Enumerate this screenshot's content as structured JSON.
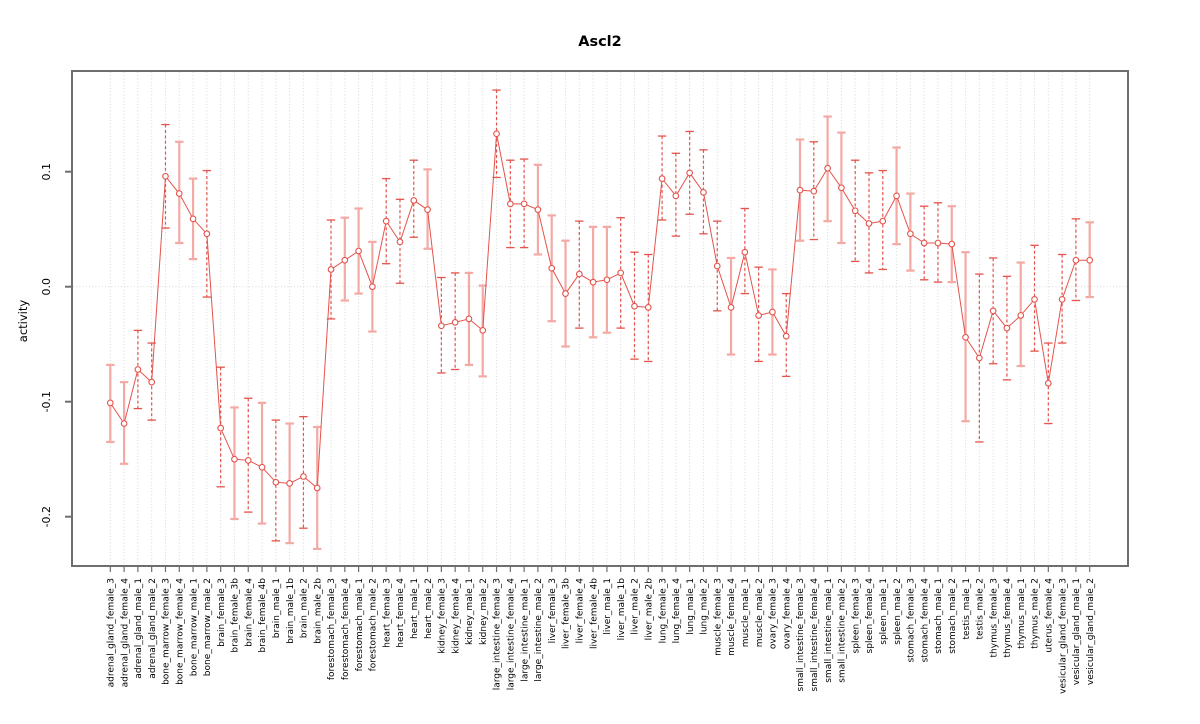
{
  "chart_data": {
    "type": "line",
    "title": "Ascl2",
    "xlabel": "",
    "ylabel": "activity",
    "ylim": [
      -0.243,
      0.188
    ],
    "y_ticks": [
      0.1,
      0.0,
      -0.1,
      -0.2
    ],
    "y_tick_labels": [
      "0.1",
      "0.0",
      "-0.1",
      "-0.2"
    ],
    "grid": "vertical dotted gridline at every category; dotted horizontal line at y=0",
    "legend_position": "none",
    "marker": "open-circle",
    "categories": [
      "adrenal_gland_female_3",
      "adrenal_gland_female_4",
      "adrenal_gland_male_1",
      "adrenal_gland_male_2",
      "bone_marrow_female_3",
      "bone_marrow_female_4",
      "bone_marrow_male_1",
      "bone_marrow_male_2",
      "brain_female_3",
      "brain_female_3b",
      "brain_female_4",
      "brain_female_4b",
      "brain_male_1",
      "brain_male_1b",
      "brain_male_2",
      "brain_male_2b",
      "forestomach_female_3",
      "forestomach_female_4",
      "forestomach_male_1",
      "forestomach_male_2",
      "heart_female_3",
      "heart_female_4",
      "heart_male_1",
      "heart_male_2",
      "kidney_female_3",
      "kidney_female_4",
      "kidney_male_1",
      "kidney_male_2",
      "large_intestine_female_3",
      "large_intestine_female_4",
      "large_intestine_male_1",
      "large_intestine_male_2",
      "liver_female_3",
      "liver_female_3b",
      "liver_female_4",
      "liver_female_4b",
      "liver_male_1",
      "liver_male_1b",
      "liver_male_2",
      "liver_male_2b",
      "lung_female_3",
      "lung_female_4",
      "lung_male_1",
      "lung_male_2",
      "muscle_female_3",
      "muscle_female_4",
      "muscle_male_1",
      "muscle_male_2",
      "ovary_female_3",
      "ovary_female_4",
      "small_intestine_female_3",
      "small_intestine_female_4",
      "small_intestine_male_1",
      "small_intestine_male_2",
      "spleen_female_3",
      "spleen_female_4",
      "spleen_male_1",
      "spleen_male_2",
      "stomach_female_3",
      "stomach_female_4",
      "stomach_male_1",
      "stomach_male_2",
      "testis_male_1",
      "testis_male_2",
      "thymus_female_3",
      "thymus_female_4",
      "thymus_male_1",
      "thymus_male_2",
      "uterus_female_4",
      "vesicular_gland_female_3",
      "vesicular_gland_male_1",
      "vesicular_gland_male_2"
    ],
    "values": [
      -0.101,
      -0.119,
      -0.072,
      -0.083,
      0.096,
      0.081,
      0.059,
      0.046,
      -0.123,
      -0.15,
      -0.151,
      -0.157,
      -0.17,
      -0.171,
      -0.165,
      -0.175,
      0.015,
      0.023,
      0.031,
      0.0,
      0.057,
      0.039,
      0.075,
      0.067,
      -0.034,
      -0.031,
      -0.028,
      -0.038,
      0.133,
      0.072,
      0.072,
      0.067,
      0.016,
      -0.006,
      0.011,
      0.004,
      0.006,
      0.012,
      -0.017,
      -0.018,
      0.094,
      0.079,
      0.099,
      0.082,
      0.018,
      -0.018,
      0.03,
      -0.025,
      -0.022,
      -0.043,
      0.084,
      0.083,
      0.103,
      0.086,
      0.066,
      0.055,
      0.057,
      0.079,
      0.046,
      0.038,
      0.038,
      0.037,
      -0.044,
      -0.062,
      -0.021,
      -0.036,
      -0.025,
      -0.011,
      -0.084,
      -0.011,
      0.023,
      0.023
    ],
    "err_hi": [
      -0.068,
      -0.083,
      -0.038,
      -0.049,
      0.141,
      0.126,
      0.094,
      0.101,
      -0.07,
      -0.105,
      -0.097,
      -0.101,
      -0.116,
      -0.119,
      -0.113,
      -0.122,
      0.058,
      0.06,
      0.068,
      0.039,
      0.094,
      0.076,
      0.11,
      0.102,
      0.008,
      0.012,
      0.012,
      0.001,
      0.171,
      0.11,
      0.111,
      0.106,
      0.062,
      0.04,
      0.057,
      0.052,
      0.052,
      0.06,
      0.03,
      0.028,
      0.131,
      0.116,
      0.135,
      0.119,
      0.057,
      0.025,
      0.068,
      0.017,
      0.015,
      -0.006,
      0.128,
      0.126,
      0.148,
      0.134,
      0.11,
      0.099,
      0.101,
      0.121,
      0.081,
      0.07,
      0.073,
      0.07,
      0.03,
      0.011,
      0.025,
      0.009,
      0.021,
      0.036,
      -0.049,
      0.028,
      0.059,
      0.056
    ],
    "err_lo": [
      -0.135,
      -0.154,
      -0.106,
      -0.116,
      0.051,
      0.038,
      0.024,
      -0.009,
      -0.174,
      -0.202,
      -0.196,
      -0.206,
      -0.221,
      -0.223,
      -0.21,
      -0.228,
      -0.028,
      -0.012,
      -0.006,
      -0.039,
      0.02,
      0.003,
      0.043,
      0.033,
      -0.075,
      -0.072,
      -0.068,
      -0.078,
      0.095,
      0.034,
      0.034,
      0.028,
      -0.03,
      -0.052,
      -0.036,
      -0.044,
      -0.04,
      -0.036,
      -0.063,
      -0.065,
      0.058,
      0.044,
      0.063,
      0.046,
      -0.021,
      -0.059,
      -0.006,
      -0.065,
      -0.059,
      -0.078,
      0.04,
      0.041,
      0.057,
      0.038,
      0.022,
      0.012,
      0.015,
      0.037,
      0.014,
      0.006,
      0.004,
      0.004,
      -0.117,
      -0.135,
      -0.067,
      -0.081,
      -0.069,
      -0.056,
      -0.119,
      -0.049,
      -0.012,
      -0.009
    ],
    "bar_styles": [
      "solid",
      "solid",
      "dashed",
      "dashed",
      "dashed",
      "solid",
      "solid",
      "dashed",
      "dashed",
      "solid",
      "dashed",
      "solid",
      "dashed",
      "solid",
      "dashed",
      "solid",
      "dashed",
      "solid",
      "solid",
      "solid",
      "dashed",
      "dashed",
      "dashed",
      "solid",
      "dashed",
      "dashed",
      "solid",
      "solid",
      "dashed",
      "dashed",
      "dashed",
      "solid",
      "solid",
      "solid",
      "dashed",
      "solid",
      "solid",
      "dashed",
      "dashed",
      "dashed",
      "dashed",
      "dashed",
      "dashed",
      "dashed",
      "dashed",
      "solid",
      "dashed",
      "dashed",
      "solid",
      "dashed",
      "solid",
      "dashed",
      "solid",
      "solid",
      "dashed",
      "dashed",
      "dashed",
      "solid",
      "solid",
      "dashed",
      "dashed",
      "solid",
      "solid",
      "dashed",
      "dashed",
      "dashed",
      "solid",
      "dashed",
      "dashed",
      "dashed",
      "dashed",
      "solid"
    ],
    "colors": {
      "series_red": "#e4534c",
      "errorbar_pink": "#f3aaa5",
      "grid_grey": "#d8d8d8",
      "frame_grey": "#6e6e6e",
      "text_black": "#000000",
      "marker_fill": "#ffffff"
    }
  }
}
